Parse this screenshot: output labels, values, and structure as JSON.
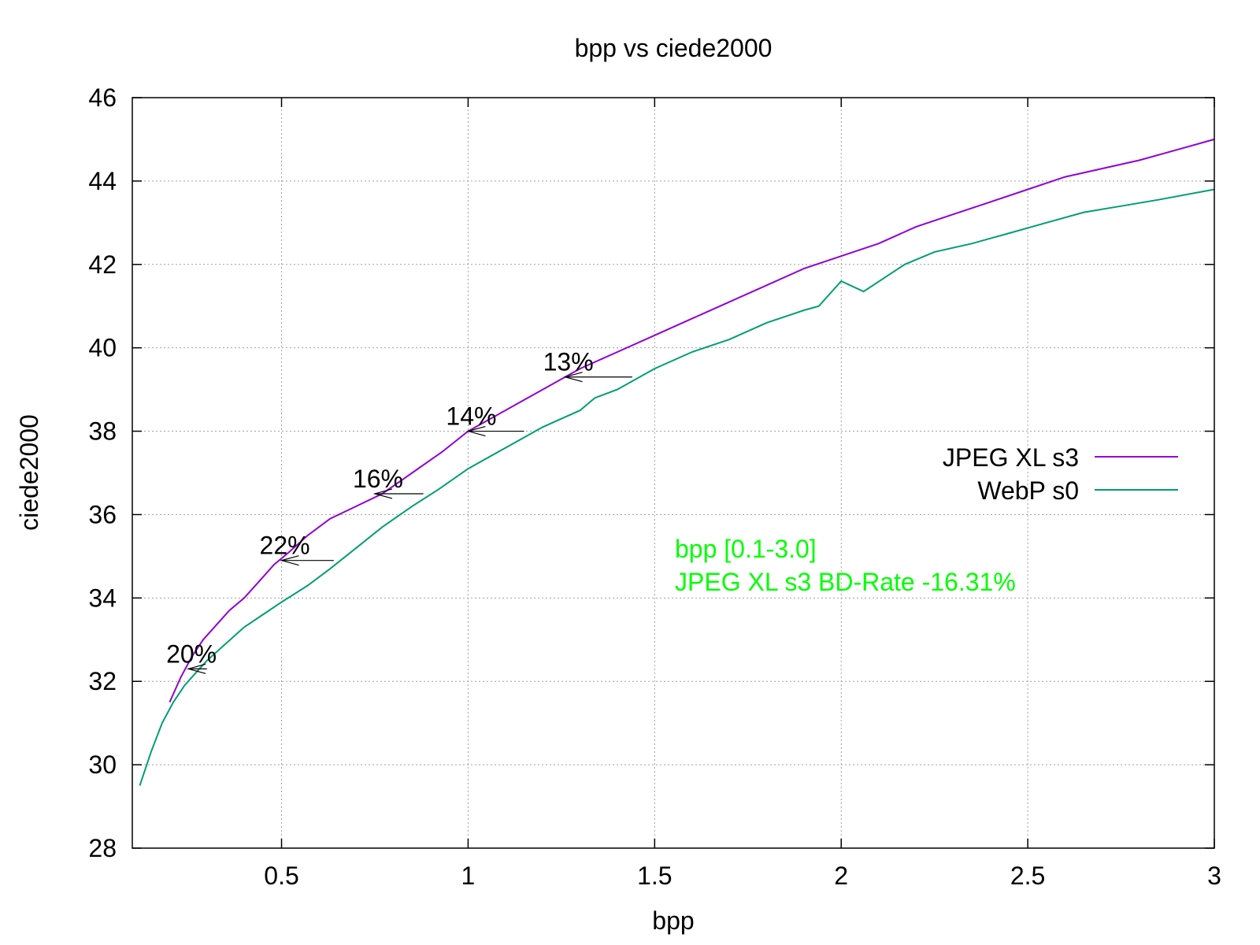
{
  "chart_data": {
    "type": "line",
    "title": "bpp vs ciede2000",
    "xlabel": "bpp",
    "ylabel": "ciede2000",
    "xlim": [
      0.1,
      3.0
    ],
    "ylim": [
      28,
      46
    ],
    "xticks": [
      0.5,
      1,
      1.5,
      2,
      2.5,
      3
    ],
    "xtick_labels": [
      "0.5",
      "1",
      "1.5",
      "2",
      "2.5",
      "3"
    ],
    "yticks": [
      28,
      30,
      32,
      34,
      36,
      38,
      40,
      42,
      44,
      46
    ],
    "ytick_labels": [
      "28",
      "30",
      "32",
      "34",
      "36",
      "38",
      "40",
      "42",
      "44",
      "46"
    ],
    "grid": true,
    "legend_position": "right",
    "series": [
      {
        "name": "JPEG XL s3",
        "color": "#9400d3",
        "points": [
          [
            0.2,
            31.5
          ],
          [
            0.23,
            32.1
          ],
          [
            0.26,
            32.6
          ],
          [
            0.29,
            33.0
          ],
          [
            0.31,
            33.2
          ],
          [
            0.33,
            33.4
          ],
          [
            0.36,
            33.7
          ],
          [
            0.4,
            34.0
          ],
          [
            0.44,
            34.4
          ],
          [
            0.48,
            34.8
          ],
          [
            0.52,
            35.1
          ],
          [
            0.57,
            35.5
          ],
          [
            0.63,
            35.9
          ],
          [
            0.7,
            36.2
          ],
          [
            0.77,
            36.5
          ],
          [
            0.85,
            37.0
          ],
          [
            0.93,
            37.5
          ],
          [
            1.0,
            38.0
          ],
          [
            1.1,
            38.5
          ],
          [
            1.2,
            39.0
          ],
          [
            1.3,
            39.5
          ],
          [
            1.4,
            39.9
          ],
          [
            1.5,
            40.3
          ],
          [
            1.6,
            40.7
          ],
          [
            1.7,
            41.1
          ],
          [
            1.8,
            41.5
          ],
          [
            1.9,
            41.9
          ],
          [
            2.0,
            42.2
          ],
          [
            2.1,
            42.5
          ],
          [
            2.2,
            42.9
          ],
          [
            2.3,
            43.2
          ],
          [
            2.4,
            43.5
          ],
          [
            2.5,
            43.8
          ],
          [
            2.6,
            44.1
          ],
          [
            2.7,
            44.3
          ],
          [
            2.8,
            44.5
          ],
          [
            2.9,
            44.75
          ],
          [
            3.0,
            45.0
          ]
        ]
      },
      {
        "name": "WebP s0",
        "color": "#009e73",
        "points": [
          [
            0.12,
            29.5
          ],
          [
            0.15,
            30.3
          ],
          [
            0.18,
            31.0
          ],
          [
            0.21,
            31.5
          ],
          [
            0.24,
            31.9
          ],
          [
            0.27,
            32.2
          ],
          [
            0.3,
            32.5
          ],
          [
            0.35,
            32.9
          ],
          [
            0.4,
            33.3
          ],
          [
            0.45,
            33.6
          ],
          [
            0.5,
            33.9
          ],
          [
            0.57,
            34.3
          ],
          [
            0.63,
            34.7
          ],
          [
            0.7,
            35.2
          ],
          [
            0.77,
            35.7
          ],
          [
            0.85,
            36.2
          ],
          [
            0.92,
            36.6
          ],
          [
            1.0,
            37.1
          ],
          [
            1.1,
            37.6
          ],
          [
            1.2,
            38.1
          ],
          [
            1.3,
            38.5
          ],
          [
            1.34,
            38.8
          ],
          [
            1.4,
            39.0
          ],
          [
            1.5,
            39.5
          ],
          [
            1.6,
            39.9
          ],
          [
            1.7,
            40.2
          ],
          [
            1.8,
            40.6
          ],
          [
            1.9,
            40.9
          ],
          [
            1.94,
            41.0
          ],
          [
            2.0,
            41.6
          ],
          [
            2.06,
            41.35
          ],
          [
            2.17,
            42.0
          ],
          [
            2.25,
            42.3
          ],
          [
            2.35,
            42.5
          ],
          [
            2.45,
            42.75
          ],
          [
            2.55,
            43.0
          ],
          [
            2.65,
            43.25
          ],
          [
            2.75,
            43.4
          ],
          [
            2.85,
            43.55
          ],
          [
            3.0,
            43.8
          ]
        ]
      }
    ],
    "arrows": [
      {
        "label": "20%",
        "from": [
          0.3,
          32.3
        ],
        "to": [
          0.25,
          32.3
        ]
      },
      {
        "label": "22%",
        "from": [
          0.64,
          34.9
        ],
        "to": [
          0.5,
          34.9
        ]
      },
      {
        "label": "16%",
        "from": [
          0.88,
          36.5
        ],
        "to": [
          0.75,
          36.5
        ]
      },
      {
        "label": "14%",
        "from": [
          1.15,
          38.0
        ],
        "to": [
          1.0,
          38.0
        ]
      },
      {
        "label": "13%",
        "from": [
          1.44,
          39.3
        ],
        "to": [
          1.26,
          39.3
        ]
      }
    ],
    "annotation_color": "#00ff00",
    "annotation_lines": [
      "bpp [0.1-3.0]",
      "JPEG XL s3 BD-Rate -16.31%"
    ]
  }
}
